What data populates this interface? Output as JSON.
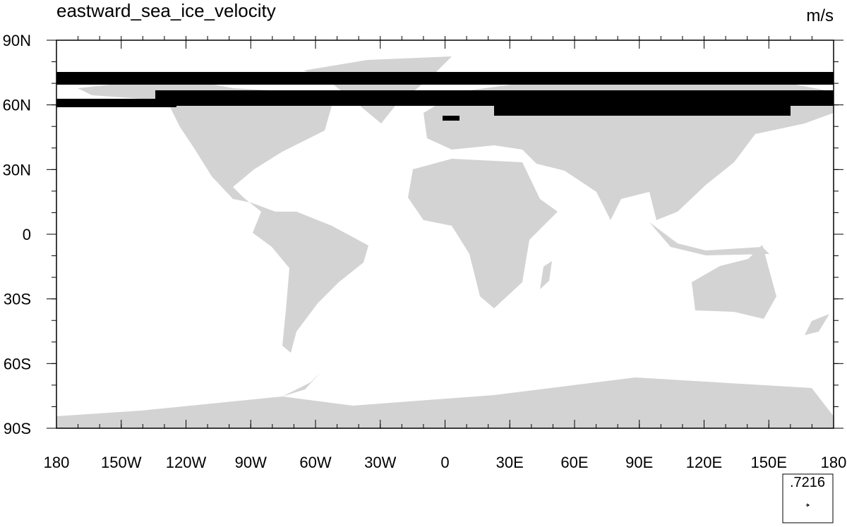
{
  "chart_data": {
    "type": "vector-map",
    "title": "eastward_sea_ice_velocity",
    "units": "m/s",
    "xlim": [
      -180,
      180
    ],
    "ylim": [
      -90,
      90
    ],
    "xticks": [
      {
        "value": -180,
        "label": "180"
      },
      {
        "value": -150,
        "label": "150W"
      },
      {
        "value": -120,
        "label": "120W"
      },
      {
        "value": -90,
        "label": "90W"
      },
      {
        "value": -60,
        "label": "60W"
      },
      {
        "value": -30,
        "label": "30W"
      },
      0,
      {
        "value": 30,
        "label": "30E"
      },
      {
        "value": 60,
        "label": "60E"
      },
      {
        "value": 90,
        "label": "90E"
      },
      {
        "value": 120,
        "label": "120E"
      },
      {
        "value": 150,
        "label": "150E"
      },
      {
        "value": 180,
        "label": "180"
      }
    ],
    "yticks": [
      {
        "value": 90,
        "label": "90N"
      },
      {
        "value": 60,
        "label": "60N"
      },
      {
        "value": 30,
        "label": "30N"
      },
      0,
      {
        "value": -30,
        "label": "30S"
      },
      {
        "value": -60,
        "label": "60S"
      },
      {
        "value": -90,
        "label": "90S"
      }
    ],
    "reference_vector": {
      "value": 0.7216,
      "label": ".7216"
    }
  }
}
